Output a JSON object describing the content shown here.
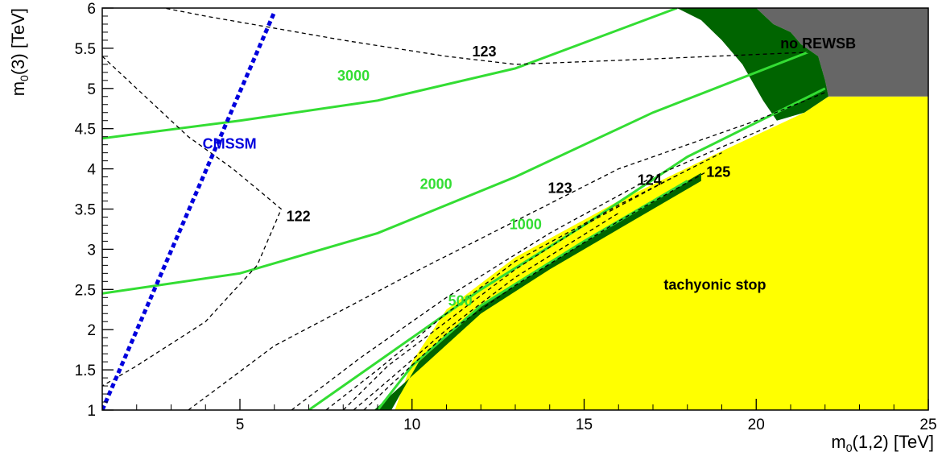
{
  "chart_data": {
    "type": "line",
    "xlabel_main": "m",
    "xlabel_sub": "0",
    "xlabel_rest": "(1,2) [TeV]",
    "ylabel_main": "m",
    "ylabel_sub": "0",
    "ylabel_rest": "(3) [TeV]",
    "xlim": [
      1,
      25
    ],
    "ylim": [
      1,
      6
    ],
    "x_ticks": [
      5,
      10,
      15,
      20,
      25
    ],
    "y_ticks": [
      1,
      1.5,
      2,
      2.5,
      3,
      3.5,
      4,
      4.5,
      5,
      5.5,
      6
    ],
    "colors": {
      "tachyonic": "#ffff00",
      "no_rewsb": "#666666",
      "dark_band": "#006400",
      "green_lines": "#33dd33",
      "cmssm": "#0000dd",
      "dashed": "#000000"
    },
    "regions": [
      {
        "key": "tachyonic",
        "label": "tachyonic stop",
        "color": "#ffff00",
        "points": [
          [
            9.5,
            1
          ],
          [
            25,
            1
          ],
          [
            25,
            4.9
          ],
          [
            22.1,
            4.9
          ],
          [
            21.4,
            4.7
          ],
          [
            19,
            4.22
          ],
          [
            16,
            3.6
          ],
          [
            13,
            2.9
          ],
          [
            11,
            2.25
          ],
          [
            10,
            1.6
          ]
        ]
      },
      {
        "key": "no_rewsb",
        "label": "no REWSB",
        "color": "#666666",
        "points": [
          [
            20,
            6
          ],
          [
            25,
            6
          ],
          [
            25,
            4.9
          ],
          [
            22.1,
            4.9
          ],
          [
            22,
            5.1
          ],
          [
            21.8,
            5.4
          ],
          [
            21.3,
            5.55
          ],
          [
            21,
            5.7
          ],
          [
            20.5,
            5.8
          ]
        ]
      },
      {
        "key": "dark_band",
        "label": "",
        "color": "#006400",
        "points": [
          [
            17.7,
            6
          ],
          [
            20,
            6
          ],
          [
            20.5,
            5.8
          ],
          [
            21,
            5.7
          ],
          [
            21.3,
            5.55
          ],
          [
            21.8,
            5.4
          ],
          [
            22,
            5.1
          ],
          [
            22.1,
            4.9
          ],
          [
            21.4,
            4.7
          ],
          [
            20.6,
            4.6
          ],
          [
            20.2,
            4.85
          ],
          [
            19.6,
            5.3
          ],
          [
            19,
            5.6
          ],
          [
            18.4,
            5.85
          ]
        ]
      },
      {
        "key": "dark_strip",
        "label": "",
        "color": "#006400",
        "points": [
          [
            8.9,
            1
          ],
          [
            9.4,
            1
          ],
          [
            10.2,
            1.6
          ],
          [
            12,
            2.3
          ],
          [
            14,
            2.85
          ],
          [
            16,
            3.35
          ],
          [
            18.4,
            3.95
          ],
          [
            18.4,
            3.85
          ],
          [
            16,
            3.25
          ],
          [
            14,
            2.75
          ],
          [
            12,
            2.2
          ],
          [
            10.2,
            1.5
          ]
        ]
      }
    ],
    "green_contours": [
      {
        "label": "3000",
        "points": [
          [
            1,
            4.38
          ],
          [
            5,
            4.6
          ],
          [
            9,
            4.85
          ],
          [
            13,
            5.25
          ],
          [
            17.7,
            6
          ]
        ]
      },
      {
        "label": "2000",
        "points": [
          [
            1,
            2.45
          ],
          [
            5,
            2.7
          ],
          [
            9,
            3.2
          ],
          [
            13,
            3.9
          ],
          [
            17,
            4.7
          ],
          [
            21.5,
            5.45
          ]
        ]
      },
      {
        "label": "1000",
        "points": [
          [
            7,
            1
          ],
          [
            9,
            1.6
          ],
          [
            12,
            2.5
          ],
          [
            15,
            3.3
          ],
          [
            18,
            4.15
          ],
          [
            22,
            5
          ]
        ]
      },
      {
        "label": "500",
        "points": [
          [
            9,
            1
          ],
          [
            10,
            1.55
          ],
          [
            12,
            2.3
          ],
          [
            15,
            3.1
          ],
          [
            18,
            3.85
          ]
        ]
      }
    ],
    "dashed_contours": [
      {
        "label": "122",
        "points": [
          [
            1,
            5.4
          ],
          [
            2.5,
            4.8
          ],
          [
            3.5,
            4.4
          ],
          [
            4.8,
            4.0
          ],
          [
            6.2,
            3.5
          ],
          [
            5.5,
            2.8
          ],
          [
            4,
            2.1
          ],
          [
            2,
            1.55
          ],
          [
            1,
            1.3
          ]
        ]
      },
      {
        "label": "123",
        "points": [
          [
            1,
            6.15
          ],
          [
            4,
            5.9
          ],
          [
            8,
            5.6
          ],
          [
            11,
            5.4
          ],
          [
            13,
            5.3
          ],
          [
            16,
            5.35
          ],
          [
            21.5,
            5.45
          ]
        ]
      },
      {
        "label": "123",
        "points": [
          [
            3.5,
            1
          ],
          [
            6,
            1.8
          ],
          [
            10,
            2.7
          ],
          [
            13,
            3.35
          ],
          [
            16,
            4.0
          ],
          [
            20,
            4.6
          ],
          [
            22,
            4.95
          ]
        ]
      },
      {
        "label": "",
        "points": [
          [
            6.5,
            1
          ],
          [
            8.5,
            1.65
          ],
          [
            11,
            2.4
          ],
          [
            14,
            3.2
          ],
          [
            17,
            3.9
          ],
          [
            20.5,
            4.55
          ]
        ]
      },
      {
        "label": "",
        "points": [
          [
            7.5,
            1
          ],
          [
            9,
            1.5
          ],
          [
            11,
            2.2
          ],
          [
            13,
            2.85
          ],
          [
            16,
            3.55
          ],
          [
            19,
            4.2
          ]
        ]
      },
      {
        "label": "124",
        "points": [
          [
            8,
            1
          ],
          [
            9.3,
            1.55
          ],
          [
            11,
            2.1
          ],
          [
            13,
            2.75
          ],
          [
            15,
            3.3
          ],
          [
            17.6,
            3.9
          ]
        ]
      },
      {
        "label": "",
        "points": [
          [
            8.3,
            1
          ],
          [
            9.4,
            1.4
          ],
          [
            11,
            2.0
          ],
          [
            13,
            2.65
          ],
          [
            16,
            3.45
          ]
        ]
      },
      {
        "label": "125",
        "points": [
          [
            8.6,
            1
          ],
          [
            9.6,
            1.4
          ],
          [
            11,
            1.95
          ],
          [
            13,
            2.55
          ],
          [
            16,
            3.35
          ],
          [
            18.5,
            3.95
          ]
        ]
      }
    ],
    "cmssm": {
      "label": "CMSSM",
      "points": [
        [
          1,
          1
        ],
        [
          6,
          5.95
        ]
      ]
    },
    "annotations": [
      {
        "key": "no_rewsb",
        "text": "no REWSB",
        "x": 21.8,
        "y": 5.5,
        "color": "#000000"
      },
      {
        "key": "tachyonic",
        "text": "tachyonic stop",
        "x": 18.8,
        "y": 2.5,
        "color": "#000000"
      },
      {
        "key": "cmssm",
        "text": "CMSSM",
        "x": 4.7,
        "y": 4.25,
        "color": "#0000dd"
      },
      {
        "key": "c3000",
        "text": "3000",
        "x": 8.3,
        "y": 5.1,
        "color": "#33dd33"
      },
      {
        "key": "c2000",
        "text": "2000",
        "x": 10.7,
        "y": 3.75,
        "color": "#33dd33"
      },
      {
        "key": "c1000",
        "text": "1000",
        "x": 13.3,
        "y": 3.25,
        "color": "#33dd33"
      },
      {
        "key": "c500",
        "text": "500",
        "x": 11.4,
        "y": 2.3,
        "color": "#33dd33"
      },
      {
        "key": "c122",
        "text": "122",
        "x": 6.7,
        "y": 3.35,
        "color": "#000000"
      },
      {
        "key": "c123a",
        "text": "123",
        "x": 12.1,
        "y": 5.4,
        "color": "#000000"
      },
      {
        "key": "c123b",
        "text": "123",
        "x": 14.3,
        "y": 3.7,
        "color": "#000000"
      },
      {
        "key": "c124",
        "text": "124",
        "x": 16.9,
        "y": 3.8,
        "color": "#000000"
      },
      {
        "key": "c125",
        "text": "125",
        "x": 18.9,
        "y": 3.9,
        "color": "#000000"
      }
    ]
  }
}
